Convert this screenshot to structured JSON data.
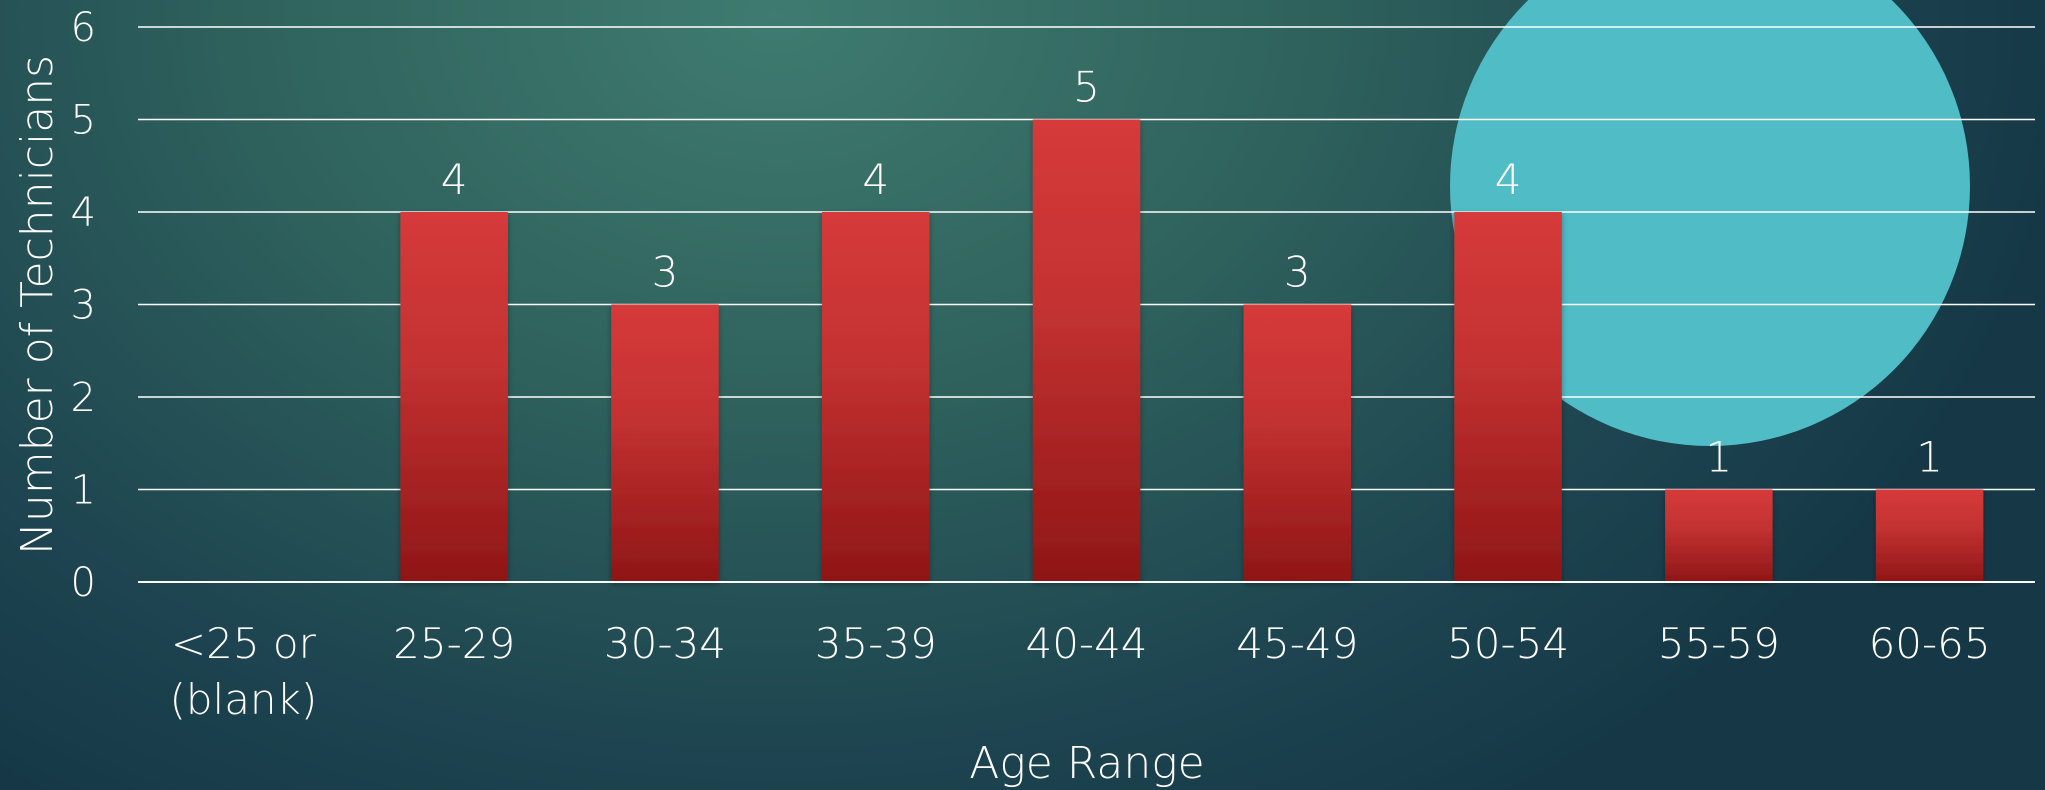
{
  "chart_data": {
    "type": "bar",
    "categories": [
      "<25 or (blank)",
      "25-29",
      "30-34",
      "35-39",
      "40-44",
      "45-49",
      "50-54",
      "55-59",
      "60-65"
    ],
    "category_lines": [
      [
        "<25 or",
        "(blank)"
      ],
      [
        "25-29"
      ],
      [
        "30-34"
      ],
      [
        "35-39"
      ],
      [
        "40-44"
      ],
      [
        "45-49"
      ],
      [
        "50-54"
      ],
      [
        "55-59"
      ],
      [
        "60-65"
      ]
    ],
    "values": [
      0,
      4,
      3,
      4,
      5,
      3,
      4,
      1,
      1
    ],
    "data_labels": [
      "",
      "4",
      "3",
      "4",
      "5",
      "3",
      "4",
      "1",
      "1"
    ],
    "yticks": [
      0,
      1,
      2,
      3,
      4,
      5,
      6
    ],
    "ylim": [
      0,
      6
    ],
    "xlabel": "Age Range",
    "ylabel": "Number of Technicians",
    "title": "",
    "grid": true,
    "legend": "none",
    "colors": {
      "bar_top": "#d63a3a",
      "bar_bottom": "#8f1616",
      "decor_circle": "#4fbcc6",
      "text": "#ffffff"
    }
  }
}
